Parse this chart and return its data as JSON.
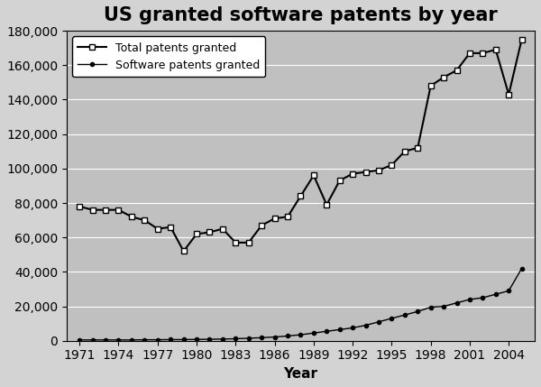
{
  "years": [
    1971,
    1972,
    1973,
    1974,
    1975,
    1976,
    1977,
    1978,
    1979,
    1980,
    1981,
    1982,
    1983,
    1984,
    1985,
    1986,
    1987,
    1988,
    1989,
    1990,
    1991,
    1992,
    1993,
    1994,
    1995,
    1996,
    1997,
    1998,
    1999,
    2000,
    2001,
    2002,
    2003,
    2004,
    2005
  ],
  "total_patents": [
    78000,
    76000,
    76000,
    76000,
    72000,
    70000,
    65000,
    66000,
    52000,
    62000,
    63000,
    65000,
    57000,
    57000,
    67000,
    71000,
    72000,
    84000,
    96000,
    79000,
    93000,
    97000,
    98000,
    99000,
    102000,
    110000,
    112000,
    148000,
    153000,
    157000,
    167000,
    167000,
    169000,
    143000,
    175000
  ],
  "software_patents": [
    500,
    500,
    500,
    500,
    500,
    600,
    600,
    700,
    700,
    800,
    900,
    1000,
    1200,
    1500,
    1800,
    2200,
    2800,
    3500,
    4500,
    5500,
    6500,
    7500,
    9000,
    11000,
    13000,
    15000,
    17000,
    19500,
    20000,
    22000,
    24000,
    25000,
    27000,
    29000,
    42000
  ],
  "title": "US granted software patents by year",
  "xlabel": "Year",
  "ylim": [
    0,
    180000
  ],
  "yticks": [
    0,
    20000,
    40000,
    60000,
    80000,
    100000,
    120000,
    140000,
    160000,
    180000
  ],
  "xticks": [
    1971,
    1974,
    1977,
    1980,
    1983,
    1986,
    1989,
    1992,
    1995,
    1998,
    2001,
    2004
  ],
  "line1_color": "#000000",
  "line2_color": "#000000",
  "bg_color": "#c0c0c0",
  "fig_bg_color": "#d3d3d3",
  "legend_label_total": "Total patents granted",
  "legend_label_software": "Software patents granted",
  "title_fontsize": 15,
  "label_fontsize": 11,
  "tick_fontsize": 10
}
